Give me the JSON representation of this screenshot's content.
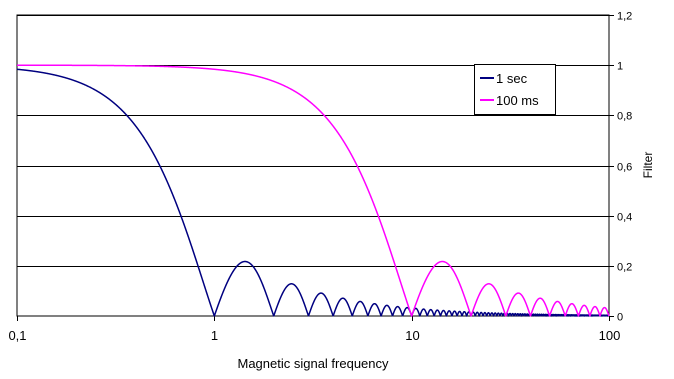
{
  "chart_data": {
    "type": "line",
    "x_scale": "log",
    "xlim": [
      0.1,
      100
    ],
    "ylim": [
      0,
      1.2
    ],
    "xlabel": "Magnetic signal frequency",
    "ylabel": "Filter",
    "x_ticks": [
      0.1,
      1,
      10,
      100
    ],
    "x_tick_labels": [
      "0,1",
      "1",
      "10",
      "100"
    ],
    "y_ticks": [
      0,
      0.2,
      0.4,
      0.6,
      0.8,
      1,
      1.2
    ],
    "y_tick_labels": [
      "0",
      "0,2",
      "0,4",
      "0,6",
      "0,8",
      "1",
      "1,2"
    ],
    "grid": "horizontal",
    "legend_position": "upper-right",
    "series": [
      {
        "name": "1 sec",
        "color": "#000080",
        "window_seconds": 1
      },
      {
        "name": "100 ms",
        "color": "#ff00ff",
        "window_seconds": 0.1
      }
    ]
  }
}
